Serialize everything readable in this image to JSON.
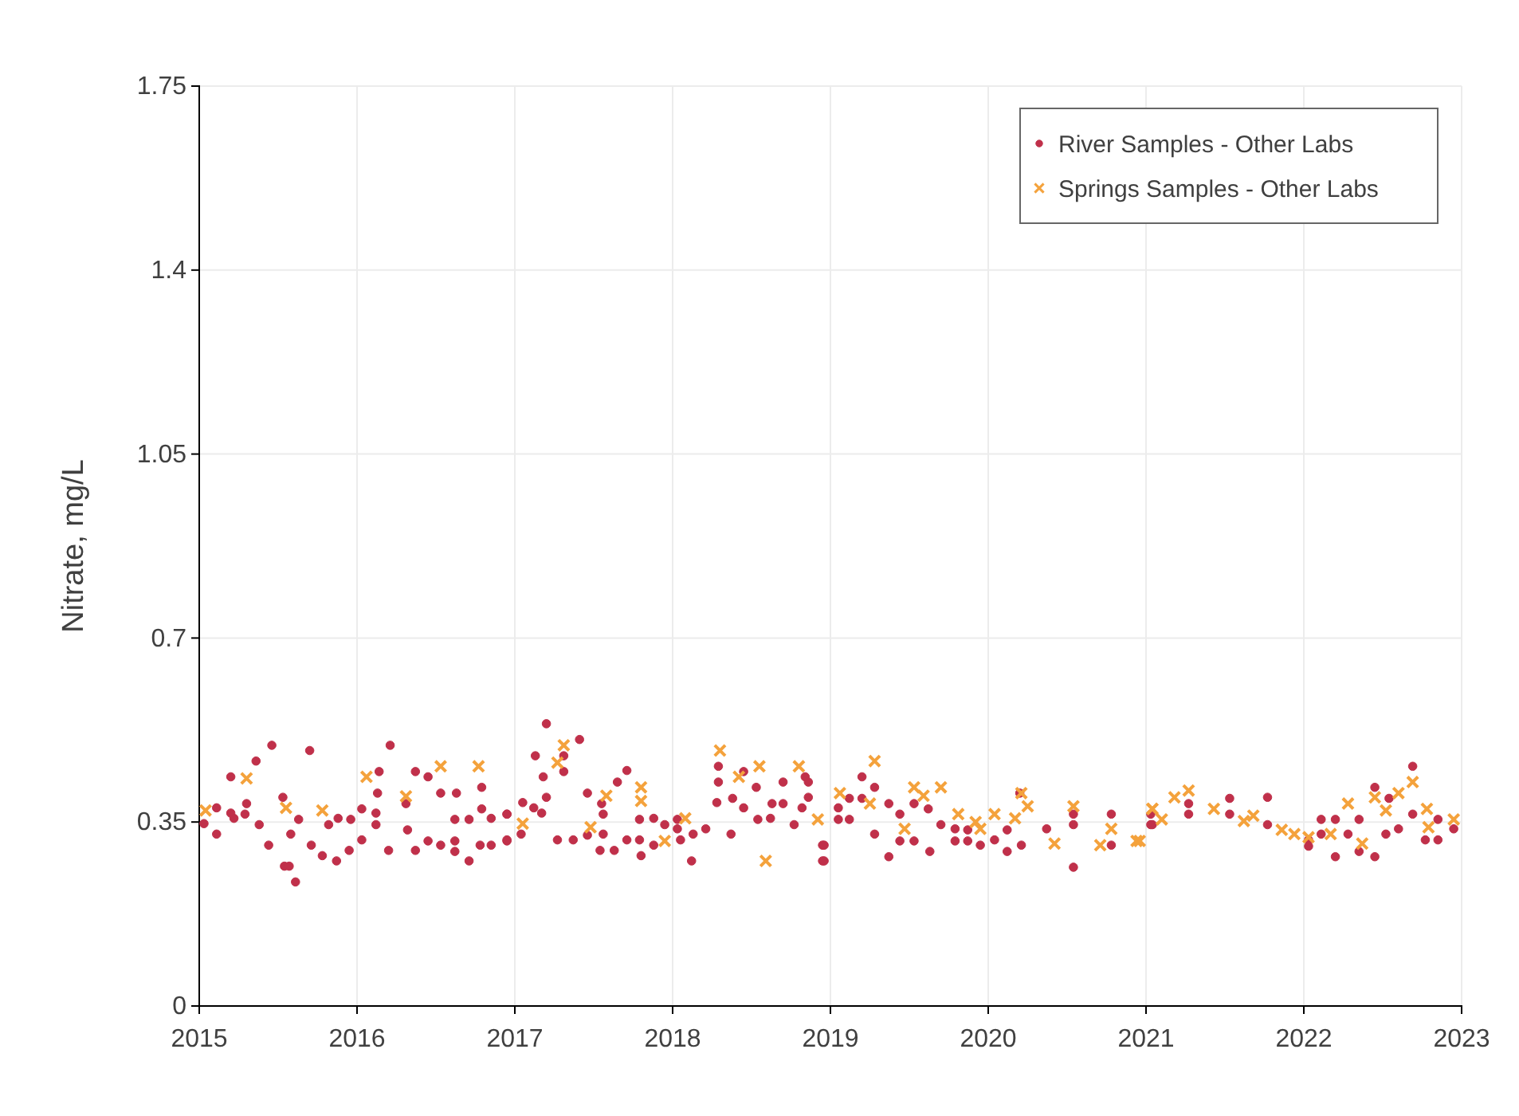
{
  "chart_data": {
    "type": "scatter",
    "ylabel": "Nitrate, mg/L",
    "xlim": [
      2015,
      2023
    ],
    "xticks": [
      2015,
      2016,
      2017,
      2018,
      2019,
      2020,
      2021,
      2022,
      2023
    ],
    "ylim": [
      0,
      1.75
    ],
    "yticks": [
      0,
      0.35,
      0.7,
      1.05,
      1.4,
      1.75
    ],
    "grid": true,
    "legend": "top right",
    "series": [
      {
        "name": "River Samples - Other Labs",
        "color": "#c0304a",
        "marker": "circle",
        "x": [
          2015.03,
          2015.11,
          2015.11,
          2015.2,
          2015.2,
          2015.22,
          2015.29,
          2015.3,
          2015.36,
          2015.38,
          2015.44,
          2015.46,
          2015.53,
          2015.54,
          2015.57,
          2015.58,
          2015.61,
          2015.63,
          2015.7,
          2015.71,
          2015.78,
          2015.82,
          2015.87,
          2015.88,
          2015.95,
          2015.96,
          2016.03,
          2016.03,
          2016.12,
          2016.12,
          2016.13,
          2016.14,
          2016.2,
          2016.21,
          2016.31,
          2016.32,
          2016.37,
          2016.37,
          2016.45,
          2016.45,
          2016.53,
          2016.53,
          2016.63,
          2016.62,
          2016.62,
          2016.62,
          2016.71,
          2016.71,
          2016.79,
          2016.79,
          2016.78,
          2016.85,
          2016.85,
          2016.95,
          2016.95,
          2016.95,
          2016.95,
          2017.04,
          2017.05,
          2017.12,
          2017.13,
          2017.17,
          2017.18,
          2017.2,
          2017.2,
          2017.27,
          2017.31,
          2017.31,
          2017.37,
          2017.41,
          2017.46,
          2017.46,
          2017.54,
          2017.55,
          2017.56,
          2017.56,
          2017.63,
          2017.65,
          2017.71,
          2017.71,
          2017.79,
          2017.79,
          2017.8,
          2017.88,
          2017.88,
          2017.95,
          2018.03,
          2018.03,
          2018.05,
          2018.12,
          2018.13,
          2018.21,
          2018.28,
          2018.29,
          2018.29,
          2018.37,
          2018.38,
          2018.45,
          2018.45,
          2018.53,
          2018.54,
          2018.62,
          2018.63,
          2018.7,
          2018.7,
          2018.77,
          2018.82,
          2018.84,
          2018.86,
          2018.86,
          2018.95,
          2018.95,
          2018.96,
          2018.96,
          2019.05,
          2019.05,
          2019.12,
          2019.12,
          2019.2,
          2019.2,
          2019.28,
          2019.28,
          2019.37,
          2019.37,
          2019.44,
          2019.44,
          2019.53,
          2019.53,
          2019.62,
          2019.63,
          2019.7,
          2019.79,
          2019.79,
          2019.87,
          2019.87,
          2019.95,
          2020.04,
          2020.12,
          2020.12,
          2020.2,
          2020.21,
          2020.37,
          2020.54,
          2020.54,
          2020.54,
          2020.78,
          2020.78,
          2021.04,
          2021.03,
          2021.03,
          2021.27,
          2021.27,
          2021.53,
          2021.53,
          2021.77,
          2021.77,
          2022.03,
          2022.03,
          2022.11,
          2022.11,
          2022.2,
          2022.2,
          2022.28,
          2022.35,
          2022.35,
          2022.45,
          2022.45,
          2022.52,
          2022.54,
          2022.6,
          2022.69,
          2022.69,
          2022.77,
          2022.85,
          2022.85,
          2022.95
        ],
        "values": [
          0.347,
          0.377,
          0.327,
          0.436,
          0.367,
          0.357,
          0.365,
          0.385,
          0.466,
          0.345,
          0.306,
          0.496,
          0.397,
          0.266,
          0.266,
          0.327,
          0.236,
          0.355,
          0.486,
          0.306,
          0.286,
          0.345,
          0.276,
          0.357,
          0.296,
          0.355,
          0.375,
          0.316,
          0.367,
          0.345,
          0.405,
          0.446,
          0.296,
          0.496,
          0.385,
          0.335,
          0.296,
          0.446,
          0.436,
          0.314,
          0.405,
          0.306,
          0.405,
          0.355,
          0.314,
          0.294,
          0.355,
          0.276,
          0.416,
          0.375,
          0.306,
          0.357,
          0.306,
          0.314,
          0.365,
          0.365,
          0.316,
          0.327,
          0.387,
          0.377,
          0.476,
          0.367,
          0.436,
          0.397,
          0.537,
          0.316,
          0.476,
          0.446,
          0.316,
          0.507,
          0.405,
          0.325,
          0.296,
          0.385,
          0.365,
          0.327,
          0.296,
          0.426,
          0.448,
          0.316,
          0.355,
          0.316,
          0.286,
          0.357,
          0.306,
          0.345,
          0.355,
          0.337,
          0.316,
          0.276,
          0.327,
          0.337,
          0.387,
          0.426,
          0.456,
          0.327,
          0.395,
          0.377,
          0.446,
          0.416,
          0.355,
          0.357,
          0.385,
          0.385,
          0.426,
          0.345,
          0.377,
          0.436,
          0.397,
          0.426,
          0.306,
          0.276,
          0.306,
          0.276,
          0.377,
          0.355,
          0.395,
          0.355,
          0.395,
          0.436,
          0.416,
          0.327,
          0.385,
          0.284,
          0.365,
          0.314,
          0.385,
          0.314,
          0.375,
          0.294,
          0.345,
          0.337,
          0.314,
          0.335,
          0.314,
          0.306,
          0.316,
          0.335,
          0.294,
          0.405,
          0.306,
          0.337,
          0.365,
          0.345,
          0.264,
          0.365,
          0.306,
          0.345,
          0.365,
          0.345,
          0.385,
          0.365,
          0.395,
          0.365,
          0.397,
          0.345,
          0.316,
          0.304,
          0.355,
          0.327,
          0.355,
          0.284,
          0.327,
          0.355,
          0.294,
          0.416,
          0.284,
          0.327,
          0.395,
          0.337,
          0.456,
          0.365,
          0.316,
          0.355,
          0.316,
          0.337
        ]
      },
      {
        "name": "Springs Samples - Other Labs",
        "color": "#f4a23c",
        "marker": "cross",
        "x": [
          2015.04,
          2015.3,
          2015.55,
          2015.78,
          2016.06,
          2016.31,
          2016.53,
          2016.77,
          2017.05,
          2017.27,
          2017.31,
          2017.48,
          2017.58,
          2017.8,
          2017.8,
          2017.95,
          2018.08,
          2018.3,
          2018.42,
          2018.55,
          2018.59,
          2018.8,
          2018.92,
          2019.06,
          2019.25,
          2019.28,
          2019.47,
          2019.53,
          2019.59,
          2019.7,
          2019.81,
          2019.92,
          2019.95,
          2020.04,
          2020.17,
          2020.21,
          2020.25,
          2020.42,
          2020.54,
          2020.71,
          2020.78,
          2020.94,
          2021.04,
          2020.96,
          2021.04,
          2021.1,
          2021.18,
          2021.27,
          2021.43,
          2021.62,
          2021.68,
          2021.86,
          2021.94,
          2022.03,
          2022.17,
          2022.28,
          2022.37,
          2022.45,
          2022.52,
          2022.6,
          2022.69,
          2022.78,
          2022.79,
          2022.95
        ],
        "values": [
          0.372,
          0.433,
          0.377,
          0.372,
          0.436,
          0.399,
          0.456,
          0.456,
          0.347,
          0.463,
          0.496,
          0.34,
          0.4,
          0.416,
          0.39,
          0.314,
          0.357,
          0.486,
          0.436,
          0.456,
          0.276,
          0.456,
          0.355,
          0.405,
          0.385,
          0.466,
          0.337,
          0.416,
          0.4,
          0.416,
          0.365,
          0.35,
          0.337,
          0.365,
          0.357,
          0.405,
          0.38,
          0.309,
          0.38,
          0.306,
          0.337,
          0.314,
          0.375,
          0.314,
          0.375,
          0.355,
          0.397,
          0.41,
          0.375,
          0.352,
          0.362,
          0.335,
          0.327,
          0.321,
          0.327,
          0.385,
          0.309,
          0.397,
          0.372,
          0.405,
          0.426,
          0.375,
          0.34,
          0.355
        ]
      }
    ]
  }
}
